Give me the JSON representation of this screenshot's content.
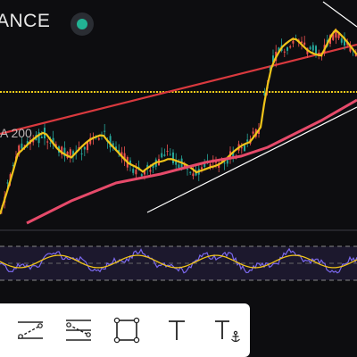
{
  "header": {
    "title": "ANCE",
    "live_color": "#22b394"
  },
  "chart": {
    "ma_label": "A 200",
    "colors": {
      "background": "#0d0d10",
      "ma_fast": "#f0c419",
      "ma_slow": "#e64a6a",
      "trend_red": "#d9393e",
      "horizontal_yellow": "#f5d21a",
      "trendlines": "#ffffff",
      "candle_up": "#26a69a",
      "candle_down": "#ef5350",
      "rsi_line": "#7b68ee",
      "rsi_ma": "#f0c419"
    }
  },
  "toolbar": {
    "tools": [
      {
        "name": "parallel-channel-icon"
      },
      {
        "name": "regression-trend-icon"
      },
      {
        "name": "rectangle-icon"
      },
      {
        "name": "text-icon"
      },
      {
        "name": "anchored-text-icon"
      }
    ]
  }
}
